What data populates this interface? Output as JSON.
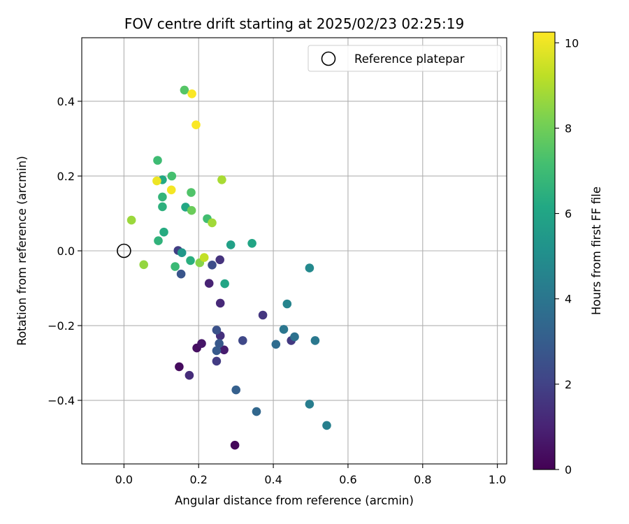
{
  "chart_data": {
    "type": "scatter",
    "title": "FOV centre drift starting at 2025/02/23 02:25:19",
    "xlabel": "Angular distance from reference (arcmin)",
    "ylabel": "Rotation from reference (arcmin)",
    "xlim": [
      -0.113,
      1.025
    ],
    "ylim": [
      -0.57,
      0.57
    ],
    "xticks": [
      0.0,
      0.2,
      0.4,
      0.6,
      0.8,
      1.0
    ],
    "xtick_labels": [
      "0.0",
      "0.2",
      "0.4",
      "0.6",
      "0.8",
      "1.0"
    ],
    "yticks": [
      -0.4,
      -0.2,
      0.0,
      0.2,
      0.4
    ],
    "ytick_labels": [
      "−0.4",
      "−0.2",
      "0.0",
      "0.2",
      "0.4"
    ],
    "grid": true,
    "legend": {
      "placement": "top-right",
      "entries": [
        {
          "label": "Reference platepar",
          "marker": "open-circle",
          "color": "#000000"
        }
      ]
    },
    "colorbar": {
      "label": "Hours from first FF file",
      "colormap": "viridis",
      "range": [
        0,
        10.25
      ],
      "ticks": [
        0,
        2,
        4,
        6,
        8,
        10
      ],
      "tick_labels": [
        "0",
        "2",
        "4",
        "6",
        "8",
        "10"
      ]
    },
    "reference_point": {
      "x": 0.0,
      "y": 0.0
    },
    "points": [
      {
        "x": 0.297,
        "y": -0.52,
        "hours": 0.2
      },
      {
        "x": 0.148,
        "y": -0.31,
        "hours": 0.3
      },
      {
        "x": 0.195,
        "y": -0.26,
        "hours": 0.4
      },
      {
        "x": 0.208,
        "y": -0.248,
        "hours": 0.6
      },
      {
        "x": 0.268,
        "y": -0.265,
        "hours": 0.8
      },
      {
        "x": 0.228,
        "y": -0.087,
        "hours": 1.0
      },
      {
        "x": 0.258,
        "y": -0.14,
        "hours": 1.2
      },
      {
        "x": 0.175,
        "y": -0.333,
        "hours": 1.3
      },
      {
        "x": 0.258,
        "y": -0.227,
        "hours": 1.4
      },
      {
        "x": 0.257,
        "y": -0.024,
        "hours": 1.5
      },
      {
        "x": 0.372,
        "y": -0.172,
        "hours": 1.6
      },
      {
        "x": 0.448,
        "y": -0.24,
        "hours": 1.7
      },
      {
        "x": 0.248,
        "y": -0.295,
        "hours": 1.8
      },
      {
        "x": 0.145,
        "y": 0.001,
        "hours": 1.9
      },
      {
        "x": 0.318,
        "y": -0.24,
        "hours": 2.2
      },
      {
        "x": 0.236,
        "y": -0.038,
        "hours": 2.4
      },
      {
        "x": 0.248,
        "y": -0.212,
        "hours": 2.6
      },
      {
        "x": 0.153,
        "y": -0.062,
        "hours": 2.7
      },
      {
        "x": 0.255,
        "y": -0.248,
        "hours": 2.8
      },
      {
        "x": 0.248,
        "y": -0.267,
        "hours": 2.9
      },
      {
        "x": 0.3,
        "y": -0.372,
        "hours": 3.1
      },
      {
        "x": 0.355,
        "y": -0.43,
        "hours": 3.4
      },
      {
        "x": 0.407,
        "y": -0.25,
        "hours": 3.6
      },
      {
        "x": 0.457,
        "y": -0.23,
        "hours": 3.8
      },
      {
        "x": 0.428,
        "y": -0.21,
        "hours": 4.0
      },
      {
        "x": 0.512,
        "y": -0.24,
        "hours": 4.1
      },
      {
        "x": 0.497,
        "y": -0.41,
        "hours": 4.3
      },
      {
        "x": 0.543,
        "y": -0.467,
        "hours": 4.4
      },
      {
        "x": 0.437,
        "y": -0.142,
        "hours": 4.6
      },
      {
        "x": 0.497,
        "y": -0.046,
        "hours": 4.8
      },
      {
        "x": 0.155,
        "y": -0.005,
        "hours": 5.4
      },
      {
        "x": 0.286,
        "y": 0.016,
        "hours": 5.8
      },
      {
        "x": 0.27,
        "y": -0.088,
        "hours": 6.0
      },
      {
        "x": 0.343,
        "y": 0.02,
        "hours": 6.0
      },
      {
        "x": 0.165,
        "y": 0.117,
        "hours": 6.1
      },
      {
        "x": 0.103,
        "y": 0.19,
        "hours": 6.2
      },
      {
        "x": 0.107,
        "y": 0.05,
        "hours": 6.3
      },
      {
        "x": 0.178,
        "y": -0.026,
        "hours": 6.4
      },
      {
        "x": 0.103,
        "y": 0.118,
        "hours": 6.5
      },
      {
        "x": 0.092,
        "y": 0.027,
        "hours": 6.6
      },
      {
        "x": 0.103,
        "y": 0.144,
        "hours": 6.7
      },
      {
        "x": 0.137,
        "y": -0.042,
        "hours": 6.9
      },
      {
        "x": 0.09,
        "y": 0.242,
        "hours": 7.0
      },
      {
        "x": 0.223,
        "y": 0.086,
        "hours": 7.1
      },
      {
        "x": 0.128,
        "y": 0.2,
        "hours": 7.2
      },
      {
        "x": 0.18,
        "y": 0.156,
        "hours": 7.4
      },
      {
        "x": 0.162,
        "y": 0.43,
        "hours": 7.5
      },
      {
        "x": 0.181,
        "y": 0.108,
        "hours": 7.9
      },
      {
        "x": 0.203,
        "y": -0.032,
        "hours": 8.4
      },
      {
        "x": 0.053,
        "y": -0.037,
        "hours": 8.6
      },
      {
        "x": 0.02,
        "y": 0.082,
        "hours": 8.7
      },
      {
        "x": 0.236,
        "y": 0.075,
        "hours": 8.8
      },
      {
        "x": 0.262,
        "y": 0.19,
        "hours": 8.9
      },
      {
        "x": 0.215,
        "y": -0.018,
        "hours": 9.3
      },
      {
        "x": 0.088,
        "y": 0.187,
        "hours": 10.0
      },
      {
        "x": 0.127,
        "y": 0.163,
        "hours": 10.1
      },
      {
        "x": 0.182,
        "y": 0.42,
        "hours": 10.2
      },
      {
        "x": 0.193,
        "y": 0.337,
        "hours": 10.2
      }
    ]
  }
}
